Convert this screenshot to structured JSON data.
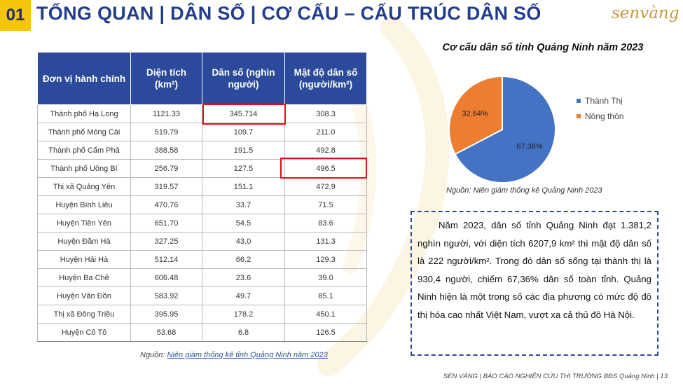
{
  "header": {
    "section_number": "01",
    "title": "TỔNG QUAN | DÂN SỐ | CƠ CẤU – CẤU TRÚC DÂN SỐ",
    "logo_text": "senvàng"
  },
  "table": {
    "headers": [
      "Đơn vị hành chính",
      "Diện tích (km²)",
      "Dân số (nghìn người)",
      "Mật độ dân số (người/km²)"
    ],
    "rows": [
      [
        "Thành phố Hạ Long",
        "1121.33",
        "345.714",
        "308.3"
      ],
      [
        "Thành phố Móng Cái",
        "519.79",
        "109.7",
        "211.0"
      ],
      [
        "Thành phố Cẩm Phả",
        "388.58",
        "191.5",
        "492.8"
      ],
      [
        "Thành phố Uông Bí",
        "256.79",
        "127.5",
        "496.5"
      ],
      [
        "Thị xã Quảng Yên",
        "319.57",
        "151.1",
        "472.9"
      ],
      [
        "Huyện Bình Liêu",
        "470.76",
        "33.7",
        "71.5"
      ],
      [
        "Huyện Tiên Yên",
        "651.70",
        "54.5",
        "83.6"
      ],
      [
        "Huyện Đầm Hà",
        "327.25",
        "43.0",
        "131.3"
      ],
      [
        "Huyện Hải Hà",
        "512.14",
        "66.2",
        "129.3"
      ],
      [
        "Huyện Ba Chẽ",
        "606.48",
        "23.6",
        "39.0"
      ],
      [
        "Huyện Vân Đồn",
        "583.92",
        "49.7",
        "85.1"
      ],
      [
        "Thị xã Đông Triều",
        "395.95",
        "178.2",
        "450.1"
      ],
      [
        "Huyện Cô Tô",
        "53.68",
        "6.8",
        "126.5"
      ]
    ],
    "source_prefix": "Nguồn: ",
    "source_link": "Niên giám thống kê tỉnh Quảng Ninh năm 2023",
    "highlight_color": "#e0101a"
  },
  "chart_data": {
    "type": "pie",
    "title": "Cơ cấu dân số tỉnh Quảng Ninh năm 2023",
    "categories": [
      "Thành Thị",
      "Nông thôn"
    ],
    "values": [
      67.36,
      32.64
    ],
    "data_labels": [
      "67.36%",
      "32.64%"
    ],
    "colors": [
      "#4472c4",
      "#ed7d31"
    ],
    "legend_position": "right",
    "source": "Nguồn: Niên giám thống kê  Quảng Ninh 2023"
  },
  "summary": {
    "text": "Năm 2023, dân số tỉnh Quảng Ninh đạt 1.381,2 nghìn người, với diện tích 6207,9 km² thì mật độ dân số là 222 người/km². Trong đó dân số sống tại thành thị là 930,4 người, chiếm 67,36% dân số toàn tỉnh. Quảng Ninh hiện là một trong số các địa phương có mức độ đô thị hóa cao nhất Việt Nam, vượt xa cả thủ đô Hà Nội."
  },
  "footer": {
    "text": "SEN VÀNG | BÁO CÁO NGHIÊN CỨU THỊ TRƯỜNG BĐS Quảng Ninh",
    "page": "13"
  },
  "colors": {
    "header_blue": "#233d8c",
    "table_header": "#2c4a9b",
    "accent_yellow": "#f6c409",
    "logo_gold": "#c9973a"
  }
}
